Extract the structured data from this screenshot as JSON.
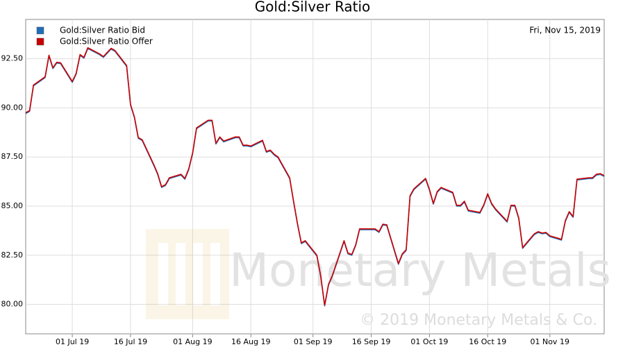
{
  "chart_data": {
    "type": "line",
    "title": "Gold:Silver Ratio",
    "annotations": [
      "Fri, Nov 15, 2019",
      "Monetary Metals",
      "© 2019 Monetary Metals & Co."
    ],
    "x": [
      "2019-06-19",
      "2019-06-20",
      "2019-06-21",
      "2019-06-24",
      "2019-06-25",
      "2019-06-26",
      "2019-06-27",
      "2019-06-28",
      "2019-07-01",
      "2019-07-02",
      "2019-07-03",
      "2019-07-04",
      "2019-07-05",
      "2019-07-08",
      "2019-07-09",
      "2019-07-10",
      "2019-07-11",
      "2019-07-12",
      "2019-07-15",
      "2019-07-16",
      "2019-07-17",
      "2019-07-18",
      "2019-07-19",
      "2019-07-22",
      "2019-07-23",
      "2019-07-24",
      "2019-07-25",
      "2019-07-26",
      "2019-07-29",
      "2019-07-30",
      "2019-07-31",
      "2019-08-01",
      "2019-08-02",
      "2019-08-05",
      "2019-08-06",
      "2019-08-07",
      "2019-08-08",
      "2019-08-09",
      "2019-08-12",
      "2019-08-13",
      "2019-08-14",
      "2019-08-15",
      "2019-08-16",
      "2019-08-19",
      "2019-08-20",
      "2019-08-21",
      "2019-08-22",
      "2019-08-23",
      "2019-08-26",
      "2019-08-27",
      "2019-08-28",
      "2019-08-29",
      "2019-08-30",
      "2019-09-02",
      "2019-09-03",
      "2019-09-04",
      "2019-09-05",
      "2019-09-06",
      "2019-09-09",
      "2019-09-10",
      "2019-09-11",
      "2019-09-12",
      "2019-09-13",
      "2019-09-16",
      "2019-09-17",
      "2019-09-18",
      "2019-09-19",
      "2019-09-20",
      "2019-09-23",
      "2019-09-24",
      "2019-09-25",
      "2019-09-26",
      "2019-09-27",
      "2019-09-30",
      "2019-10-01",
      "2019-10-02",
      "2019-10-03",
      "2019-10-04",
      "2019-10-07",
      "2019-10-08",
      "2019-10-09",
      "2019-10-10",
      "2019-10-11",
      "2019-10-14",
      "2019-10-15",
      "2019-10-16",
      "2019-10-17",
      "2019-10-18",
      "2019-10-21",
      "2019-10-22",
      "2019-10-23",
      "2019-10-24",
      "2019-10-25",
      "2019-10-28",
      "2019-10-29",
      "2019-10-30",
      "2019-10-31",
      "2019-11-01",
      "2019-11-04",
      "2019-11-05",
      "2019-11-06",
      "2019-11-07",
      "2019-11-08",
      "2019-11-11",
      "2019-11-12",
      "2019-11-13",
      "2019-11-14",
      "2019-11-15"
    ],
    "series": [
      {
        "name": "Gold:Silver Ratio Bid",
        "color": "#1f6fb8",
        "values": [
          89.71,
          89.82,
          91.12,
          91.54,
          92.64,
          92.0,
          92.28,
          92.25,
          91.3,
          91.72,
          92.67,
          92.53,
          93.02,
          92.71,
          92.57,
          92.78,
          92.99,
          92.88,
          92.11,
          90.14,
          89.5,
          88.45,
          88.34,
          87.07,
          86.61,
          85.95,
          86.05,
          86.4,
          86.58,
          86.37,
          86.86,
          87.67,
          88.94,
          89.33,
          89.33,
          88.16,
          88.48,
          88.27,
          88.48,
          88.48,
          88.06,
          88.06,
          88.02,
          88.31,
          87.74,
          87.81,
          87.6,
          87.46,
          86.4,
          85.21,
          84.08,
          83.09,
          83.2,
          82.46,
          81.4,
          79.92,
          80.98,
          81.44,
          83.2,
          82.57,
          82.5,
          82.99,
          83.8,
          83.8,
          83.8,
          83.66,
          84.04,
          84.01,
          82.04,
          82.53,
          82.74,
          85.49,
          85.84,
          86.37,
          85.81,
          85.1,
          85.7,
          85.91,
          85.66,
          85.0,
          85.0,
          85.21,
          84.75,
          84.64,
          85.03,
          85.59,
          85.1,
          84.82,
          84.19,
          85.0,
          85.0,
          84.36,
          82.85,
          83.55,
          83.66,
          83.59,
          83.62,
          83.45,
          83.27,
          84.22,
          84.68,
          84.43,
          86.33,
          86.4,
          86.4,
          86.58,
          86.61,
          86.51
        ]
      },
      {
        "name": "Gold:Silver Ratio Offer",
        "color": "#cc0000",
        "values": [
          89.75,
          89.86,
          91.16,
          91.58,
          92.68,
          92.04,
          92.32,
          92.29,
          91.34,
          91.76,
          92.71,
          92.57,
          93.06,
          92.75,
          92.61,
          92.82,
          93.03,
          92.92,
          92.15,
          90.18,
          89.54,
          88.49,
          88.38,
          87.11,
          86.65,
          85.99,
          86.09,
          86.44,
          86.62,
          86.41,
          86.9,
          87.71,
          88.98,
          89.37,
          89.37,
          88.2,
          88.52,
          88.31,
          88.52,
          88.52,
          88.1,
          88.1,
          88.06,
          88.35,
          87.78,
          87.85,
          87.64,
          87.5,
          86.44,
          85.25,
          84.12,
          83.13,
          83.24,
          82.5,
          81.44,
          79.96,
          81.02,
          81.48,
          83.24,
          82.61,
          82.54,
          83.03,
          83.84,
          83.84,
          83.84,
          83.7,
          84.08,
          84.05,
          82.08,
          82.57,
          82.78,
          85.53,
          85.88,
          86.41,
          85.85,
          85.14,
          85.74,
          85.95,
          85.7,
          85.04,
          85.04,
          85.25,
          84.79,
          84.68,
          85.07,
          85.63,
          85.14,
          84.86,
          84.23,
          85.04,
          85.04,
          84.4,
          82.89,
          83.59,
          83.7,
          83.63,
          83.66,
          83.49,
          83.31,
          84.26,
          84.72,
          84.47,
          86.37,
          86.44,
          86.44,
          86.62,
          86.65,
          86.55
        ]
      }
    ],
    "xlim": [
      "2019-06-19",
      "2019-11-15"
    ],
    "xticks": [
      {
        "value": "2019-07-01",
        "label": "01 Jul 19"
      },
      {
        "value": "2019-07-16",
        "label": "16 Jul 19"
      },
      {
        "value": "2019-08-01",
        "label": "01 Aug 19"
      },
      {
        "value": "2019-08-16",
        "label": "16 Aug 19"
      },
      {
        "value": "2019-09-01",
        "label": "01 Sep 19"
      },
      {
        "value": "2019-09-16",
        "label": "16 Sep 19"
      },
      {
        "value": "2019-10-01",
        "label": "01 Oct 19"
      },
      {
        "value": "2019-10-16",
        "label": "16 Oct 19"
      },
      {
        "value": "2019-11-01",
        "label": "01 Nov 19"
      }
    ],
    "ylim": [
      78.5,
      94.5
    ],
    "yticks": [
      {
        "value": 80,
        "label": "80.00"
      },
      {
        "value": 82.5,
        "label": "82.50"
      },
      {
        "value": 85,
        "label": "85.00"
      },
      {
        "value": 87.5,
        "label": "87.50"
      },
      {
        "value": 90,
        "label": "90.00"
      },
      {
        "value": 92.5,
        "label": "92.50"
      }
    ],
    "grid": true,
    "legend": "top-left"
  }
}
